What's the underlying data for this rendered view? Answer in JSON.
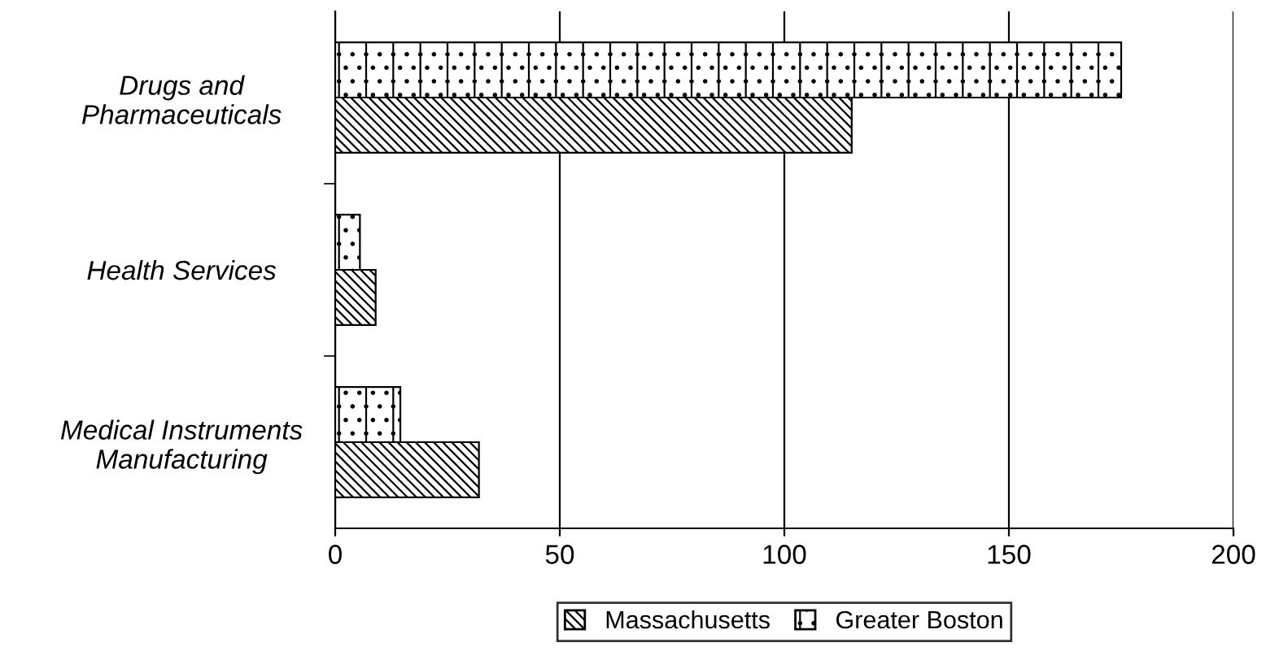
{
  "chart_data": {
    "type": "bar",
    "orientation": "horizontal",
    "categories": [
      "Drugs and\nPharmaceuticals",
      "Health Services",
      "Medical Instruments\nManufacturing"
    ],
    "series": [
      {
        "name": "Massachusetts",
        "color": "#000000",
        "values": [
          115,
          9,
          32
        ]
      },
      {
        "name": "Greater Boston",
        "color": "#000000",
        "values": [
          175,
          5.5,
          14.5
        ]
      }
    ],
    "xlim": [
      0,
      200
    ],
    "xticks": [
      0,
      50,
      100,
      150,
      200
    ],
    "grid": "x",
    "legend": "bottom"
  }
}
